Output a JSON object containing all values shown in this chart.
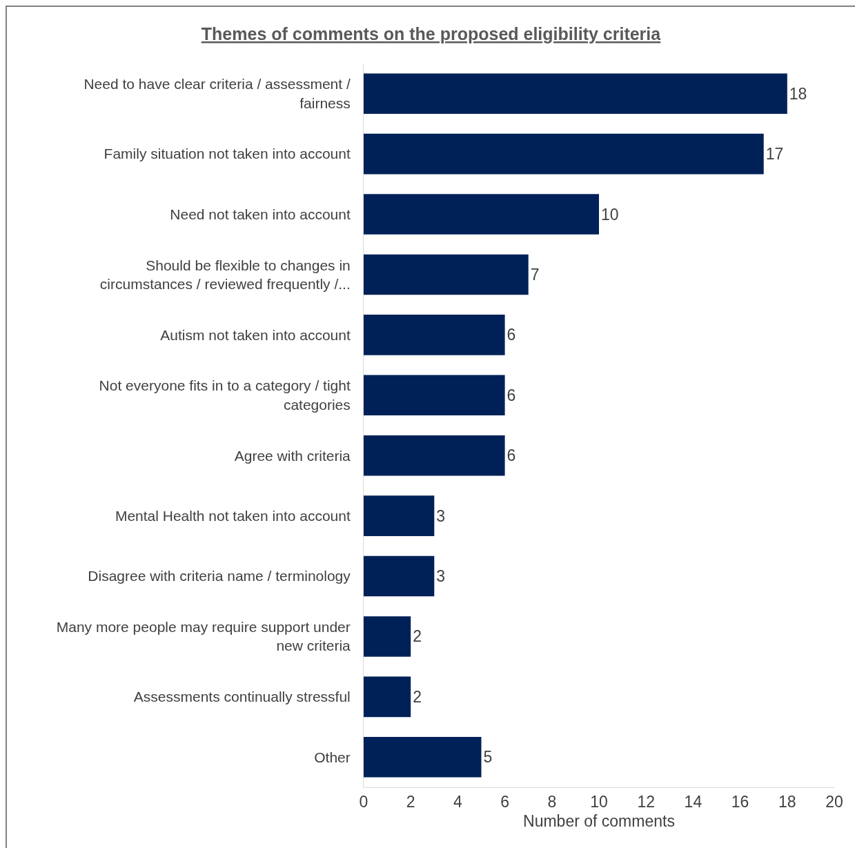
{
  "chart_data": {
    "type": "bar",
    "orientation": "horizontal",
    "title": "Themes of comments on the proposed eligibility criteria",
    "xlabel": "Number of comments",
    "categories": [
      "Need to have clear criteria / assessment / fairness",
      "Family situation not taken into account",
      "Need not taken into account",
      "Should be flexible to changes in circumstances / reviewed frequently /...",
      "Autism not taken into account",
      "Not everyone fits in to a category / tight categories",
      "Agree with criteria",
      "Mental Health not taken into account",
      "Disagree with criteria name / terminology",
      "Many more people may require support under new criteria",
      "Assessments continually stressful",
      "Other"
    ],
    "values": [
      18,
      17,
      10,
      7,
      6,
      6,
      6,
      3,
      3,
      2,
      2,
      5
    ],
    "color": "#002157",
    "xlim": [
      0,
      20
    ],
    "xticks": [
      0,
      2,
      4,
      6,
      8,
      10,
      12,
      14,
      16,
      18,
      20
    ],
    "data_labels": true
  }
}
